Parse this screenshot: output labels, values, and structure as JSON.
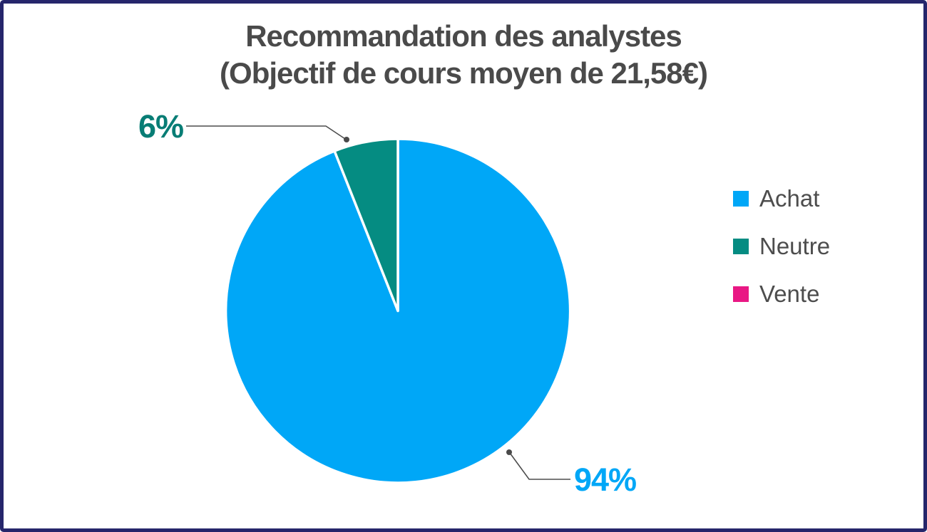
{
  "chart": {
    "title_line1": "Recommandation des analystes",
    "title_line2": "(Objectif de cours moyen de 21,58€)"
  },
  "chart_data": {
    "type": "pie",
    "title": "Recommandation des analystes (Objectif de cours moyen de 21,58€)",
    "categories": [
      "Achat",
      "Neutre",
      "Vente"
    ],
    "values": [
      94,
      6,
      0
    ],
    "unit": "%",
    "colors": [
      "#00A7F7",
      "#058C82",
      "#E91884"
    ],
    "start_angle": "top",
    "direction": "clockwise",
    "slice_gap_color": "#FFFFFF",
    "legend_position": "right",
    "annotations": [
      {
        "series": "Achat",
        "text": "94%",
        "color": "#00A7F7"
      },
      {
        "series": "Neutre",
        "text": "6%",
        "color": "#087D75"
      }
    ]
  },
  "labels": {
    "achat_pct": {
      "text": "94%",
      "color": "#00A7F7"
    },
    "neutre_pct": {
      "text": "6%",
      "color": "#087D75"
    }
  },
  "legend": {
    "items": [
      {
        "label": "Achat",
        "color": "#00A7F7"
      },
      {
        "label": "Neutre",
        "color": "#058C82"
      },
      {
        "label": "Vente",
        "color": "#E91884"
      }
    ]
  },
  "frame": {
    "border_color": "#26266B",
    "title_color": "#4A4A4A"
  }
}
